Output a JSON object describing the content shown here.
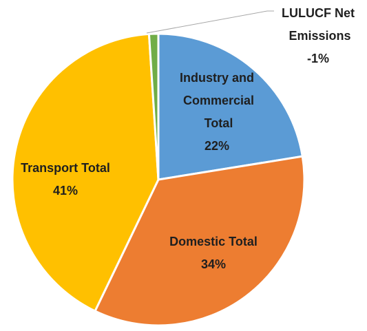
{
  "chart_data": {
    "type": "pie",
    "categories": [
      "Industry and Commercial Total",
      "Domestic Total",
      "Transport Total",
      "LULUCF Net Emissions"
    ],
    "values": [
      22,
      34,
      41,
      -1
    ],
    "value_labels": [
      "22%",
      "34%",
      "41%",
      "-1%"
    ],
    "colors": [
      "#5b9bd5",
      "#ed7d31",
      "#ffc000",
      "#70ad47"
    ]
  }
}
